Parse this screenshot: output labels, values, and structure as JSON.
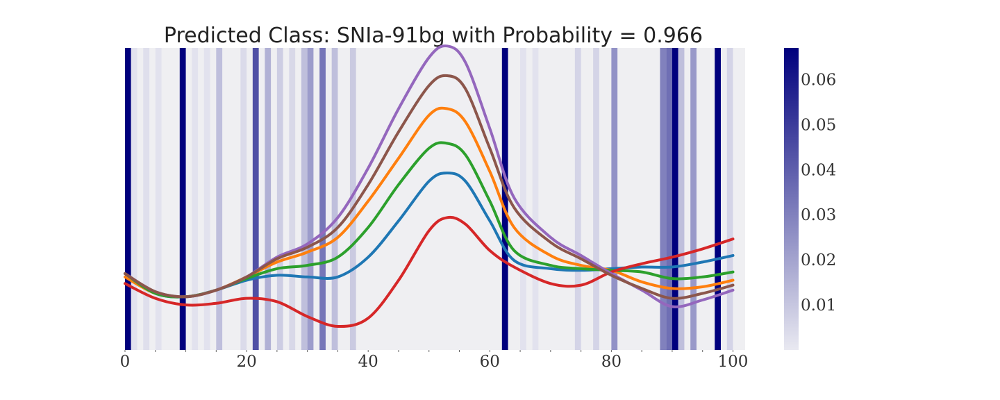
{
  "chart_data": {
    "type": "line",
    "title": "Predicted Class: SNIa-91bg with Probability = 0.966",
    "xlabel": "",
    "ylabel": "",
    "xlim": [
      0,
      102
    ],
    "x_ticks": [
      0,
      20,
      40,
      60,
      80,
      100
    ],
    "x_minor_tick_step": 5,
    "y_ticks_shown": false,
    "grid": false,
    "background_color": "#efeff2",
    "attention_colormap": {
      "low": "#e9e9f1",
      "high": "#00007d"
    },
    "colorbar": {
      "range": [
        0,
        0.067
      ],
      "ticks": [
        0.01,
        0.02,
        0.03,
        0.04,
        0.05,
        0.06
      ],
      "tick_labels": [
        "0.01",
        "0.02",
        "0.03",
        "0.04",
        "0.05",
        "0.06"
      ]
    },
    "attention_bands": [
      {
        "x": 0,
        "value": 0.067
      },
      {
        "x": 1,
        "value": 0.002
      },
      {
        "x": 3,
        "value": 0.003
      },
      {
        "x": 5,
        "value": 0.002
      },
      {
        "x": 9,
        "value": 0.067
      },
      {
        "x": 11,
        "value": 0.002
      },
      {
        "x": 13,
        "value": 0.002
      },
      {
        "x": 15,
        "value": 0.012
      },
      {
        "x": 19,
        "value": 0.004
      },
      {
        "x": 21,
        "value": 0.044
      },
      {
        "x": 23,
        "value": 0.016
      },
      {
        "x": 25,
        "value": 0.008
      },
      {
        "x": 27,
        "value": 0.005
      },
      {
        "x": 29,
        "value": 0.012
      },
      {
        "x": 30,
        "value": 0.022
      },
      {
        "x": 32,
        "value": 0.033
      },
      {
        "x": 34,
        "value": 0.012
      },
      {
        "x": 37,
        "value": 0.009
      },
      {
        "x": 62,
        "value": 0.067
      },
      {
        "x": 65,
        "value": 0.002
      },
      {
        "x": 67,
        "value": 0.002
      },
      {
        "x": 74,
        "value": 0.006
      },
      {
        "x": 77,
        "value": 0.006
      },
      {
        "x": 80,
        "value": 0.025
      },
      {
        "x": 88,
        "value": 0.03
      },
      {
        "x": 89,
        "value": 0.035
      },
      {
        "x": 90,
        "value": 0.067
      },
      {
        "x": 91,
        "value": 0.012
      },
      {
        "x": 93,
        "value": 0.023
      },
      {
        "x": 97,
        "value": 0.067
      },
      {
        "x": 99,
        "value": 0.006
      }
    ],
    "series": [
      {
        "color": "#1f77b4",
        "points": [
          [
            0,
            0.2
          ],
          [
            5,
            0.14
          ],
          [
            10,
            0.13
          ],
          [
            15,
            0.15
          ],
          [
            20,
            0.18
          ],
          [
            25,
            0.195
          ],
          [
            30,
            0.19
          ],
          [
            35,
            0.19
          ],
          [
            40,
            0.25
          ],
          [
            45,
            0.36
          ],
          [
            50,
            0.48
          ],
          [
            53,
            0.505
          ],
          [
            56,
            0.48
          ],
          [
            60,
            0.36
          ],
          [
            64,
            0.24
          ],
          [
            70,
            0.215
          ],
          [
            75,
            0.21
          ],
          [
            80,
            0.215
          ],
          [
            85,
            0.22
          ],
          [
            90,
            0.22
          ],
          [
            95,
            0.235
          ],
          [
            100,
            0.255
          ]
        ]
      },
      {
        "color": "#ff7f0e",
        "points": [
          [
            0,
            0.19
          ],
          [
            5,
            0.14
          ],
          [
            10,
            0.13
          ],
          [
            15,
            0.15
          ],
          [
            20,
            0.19
          ],
          [
            25,
            0.235
          ],
          [
            30,
            0.265
          ],
          [
            35,
            0.31
          ],
          [
            40,
            0.42
          ],
          [
            45,
            0.55
          ],
          [
            50,
            0.68
          ],
          [
            53,
            0.7
          ],
          [
            56,
            0.66
          ],
          [
            60,
            0.51
          ],
          [
            64,
            0.34
          ],
          [
            70,
            0.255
          ],
          [
            75,
            0.225
          ],
          [
            80,
            0.21
          ],
          [
            85,
            0.175
          ],
          [
            90,
            0.155
          ],
          [
            95,
            0.16
          ],
          [
            100,
            0.18
          ]
        ]
      },
      {
        "color": "#2ca02c",
        "points": [
          [
            0,
            0.2
          ],
          [
            5,
            0.14
          ],
          [
            10,
            0.13
          ],
          [
            15,
            0.15
          ],
          [
            20,
            0.185
          ],
          [
            25,
            0.215
          ],
          [
            30,
            0.225
          ],
          [
            35,
            0.25
          ],
          [
            40,
            0.34
          ],
          [
            45,
            0.47
          ],
          [
            50,
            0.58
          ],
          [
            53,
            0.595
          ],
          [
            56,
            0.56
          ],
          [
            60,
            0.42
          ],
          [
            64,
            0.27
          ],
          [
            70,
            0.225
          ],
          [
            75,
            0.215
          ],
          [
            80,
            0.21
          ],
          [
            85,
            0.205
          ],
          [
            90,
            0.185
          ],
          [
            95,
            0.19
          ],
          [
            100,
            0.205
          ]
        ]
      },
      {
        "color": "#d62728",
        "points": [
          [
            0,
            0.17
          ],
          [
            5,
            0.125
          ],
          [
            10,
            0.105
          ],
          [
            15,
            0.11
          ],
          [
            20,
            0.125
          ],
          [
            25,
            0.115
          ],
          [
            30,
            0.07
          ],
          [
            35,
            0.04
          ],
          [
            40,
            0.065
          ],
          [
            45,
            0.18
          ],
          [
            50,
            0.33
          ],
          [
            53,
            0.37
          ],
          [
            56,
            0.35
          ],
          [
            60,
            0.27
          ],
          [
            64,
            0.22
          ],
          [
            70,
            0.17
          ],
          [
            75,
            0.165
          ],
          [
            80,
            0.205
          ],
          [
            85,
            0.23
          ],
          [
            90,
            0.25
          ],
          [
            95,
            0.275
          ],
          [
            100,
            0.305
          ]
        ]
      },
      {
        "color": "#9467bd",
        "points": [
          [
            0,
            0.2
          ],
          [
            5,
            0.145
          ],
          [
            10,
            0.13
          ],
          [
            15,
            0.15
          ],
          [
            20,
            0.19
          ],
          [
            25,
            0.25
          ],
          [
            30,
            0.29
          ],
          [
            35,
            0.37
          ],
          [
            40,
            0.52
          ],
          [
            45,
            0.7
          ],
          [
            50,
            0.855
          ],
          [
            53,
            0.89
          ],
          [
            56,
            0.84
          ],
          [
            60,
            0.64
          ],
          [
            64,
            0.43
          ],
          [
            70,
            0.31
          ],
          [
            75,
            0.255
          ],
          [
            80,
            0.2
          ],
          [
            85,
            0.15
          ],
          [
            90,
            0.1
          ],
          [
            95,
            0.12
          ],
          [
            100,
            0.15
          ]
        ]
      },
      {
        "color": "#8c564b",
        "points": [
          [
            0,
            0.2
          ],
          [
            5,
            0.145
          ],
          [
            10,
            0.13
          ],
          [
            15,
            0.15
          ],
          [
            20,
            0.19
          ],
          [
            25,
            0.245
          ],
          [
            30,
            0.28
          ],
          [
            35,
            0.34
          ],
          [
            40,
            0.47
          ],
          [
            45,
            0.63
          ],
          [
            50,
            0.77
          ],
          [
            53,
            0.8
          ],
          [
            56,
            0.76
          ],
          [
            60,
            0.58
          ],
          [
            64,
            0.4
          ],
          [
            70,
            0.295
          ],
          [
            75,
            0.245
          ],
          [
            80,
            0.195
          ],
          [
            85,
            0.155
          ],
          [
            90,
            0.125
          ],
          [
            95,
            0.14
          ],
          [
            100,
            0.165
          ]
        ]
      }
    ]
  }
}
